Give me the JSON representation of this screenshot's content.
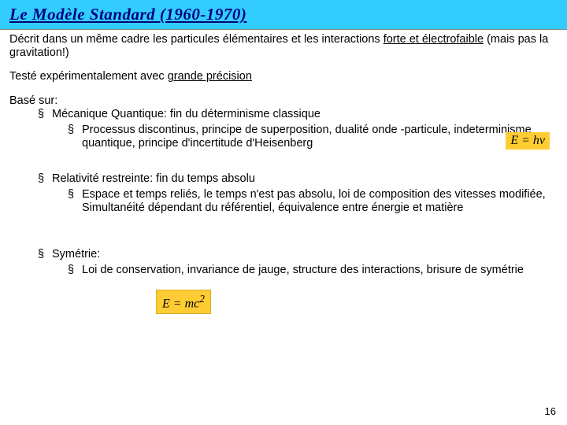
{
  "colors": {
    "title_bg": "#33ccff",
    "title_fg": "#000080",
    "formula_bg": "#ffcc33",
    "body_fg": "#000000",
    "page_bg": "#ffffff"
  },
  "title": "Le Modèle Standard (1960-1970)",
  "para1_a": "Décrit dans un même cadre les particules élémentaires et les interactions ",
  "para1_u": "forte et électrofaible",
  "para1_b": " (mais pas la gravitation!)",
  "para2_a": "Testé expérimentalement avec ",
  "para2_u": "grande précision",
  "based_on": "Basé sur:",
  "qm_label": "Mécanique Quantique: fin du déterminisme classique",
  "qm_sub": "Processus discontinus, principe de superposition, dualité onde -particule, indeterminisme quantique, principe d'incertitude d'Heisenberg",
  "rel_label": "Relativité restreinte: fin du temps absolu",
  "rel_sub": "Espace et temps reliés, le temps n'est pas absolu, loi de composition des vitesses modifiée, Simultanéité dépendant du référentiel, équivalence entre énergie et matière",
  "sym_label": "Symétrie:",
  "sym_sub": "Loi de conservation, invariance de jauge, structure des interactions, brisure de symétrie",
  "formula1": "E = hv",
  "formula2_a": "E = mc",
  "formula2_exp": "2",
  "page_num": "16"
}
